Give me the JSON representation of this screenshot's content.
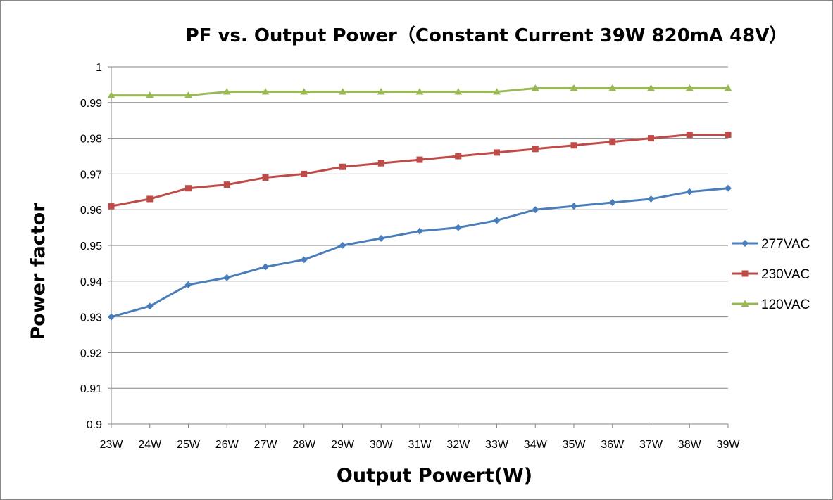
{
  "chart_data": {
    "type": "line",
    "title": "PF vs. Output Power（Constant Current 39W 820mA 48V）",
    "xlabel": "Output Powert(W)",
    "ylabel": "Power factor",
    "categories": [
      "23W",
      "24W",
      "25W",
      "26W",
      "27W",
      "28W",
      "29W",
      "30W",
      "31W",
      "32W",
      "33W",
      "34W",
      "35W",
      "36W",
      "37W",
      "38W",
      "39W"
    ],
    "ylim": [
      0.9,
      1.0
    ],
    "yticks": [
      "0.9",
      "0.91",
      "0.92",
      "0.93",
      "0.94",
      "0.95",
      "0.96",
      "0.97",
      "0.98",
      "0.99",
      "1"
    ],
    "grid": "horizontal",
    "legend_position": "right",
    "series": [
      {
        "name": "277VAC",
        "color": "#4a7ebb",
        "marker": "diamond",
        "values": [
          0.93,
          0.933,
          0.939,
          0.941,
          0.944,
          0.946,
          0.95,
          0.952,
          0.954,
          0.955,
          0.957,
          0.96,
          0.961,
          0.962,
          0.963,
          0.965,
          0.966
        ]
      },
      {
        "name": "230VAC",
        "color": "#be4b48",
        "marker": "square",
        "values": [
          0.961,
          0.963,
          0.966,
          0.967,
          0.969,
          0.97,
          0.972,
          0.973,
          0.974,
          0.975,
          0.976,
          0.977,
          0.978,
          0.979,
          0.98,
          0.981,
          0.981
        ]
      },
      {
        "name": "120VAC",
        "color": "#98b954",
        "marker": "triangle",
        "values": [
          0.992,
          0.992,
          0.992,
          0.993,
          0.993,
          0.993,
          0.993,
          0.993,
          0.993,
          0.993,
          0.993,
          0.994,
          0.994,
          0.994,
          0.994,
          0.994,
          0.994
        ]
      }
    ]
  }
}
